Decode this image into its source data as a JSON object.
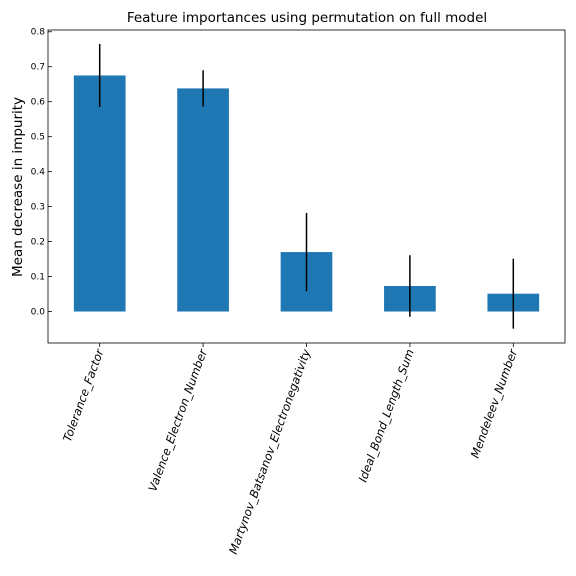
{
  "chart_data": {
    "type": "bar",
    "title": "Feature importances using permutation on full model",
    "xlabel": "",
    "ylabel": "Mean decrease in impurity",
    "categories": [
      "Tolerance_Factor",
      "Valence_Electron_Number",
      "Martynov_Batsanov_Electronegativity",
      "Ideal_Bond_Length_Sum",
      "Mendeleev_Number"
    ],
    "values": [
      0.675,
      0.638,
      0.17,
      0.073,
      0.051
    ],
    "errors": [
      0.09,
      0.052,
      0.112,
      0.088,
      0.1
    ],
    "ylim": [
      -0.09,
      0.805
    ],
    "yticks": [
      0.0,
      0.1,
      0.2,
      0.3,
      0.4,
      0.5,
      0.6,
      0.7,
      0.8
    ],
    "ytick_labels": [
      "0.0",
      "0.1",
      "0.2",
      "0.3",
      "0.4",
      "0.5",
      "0.6",
      "0.7",
      "0.8"
    ],
    "grid": false,
    "legend": "none",
    "bar_color": "#1f77b4",
    "error_color": "#000000"
  }
}
